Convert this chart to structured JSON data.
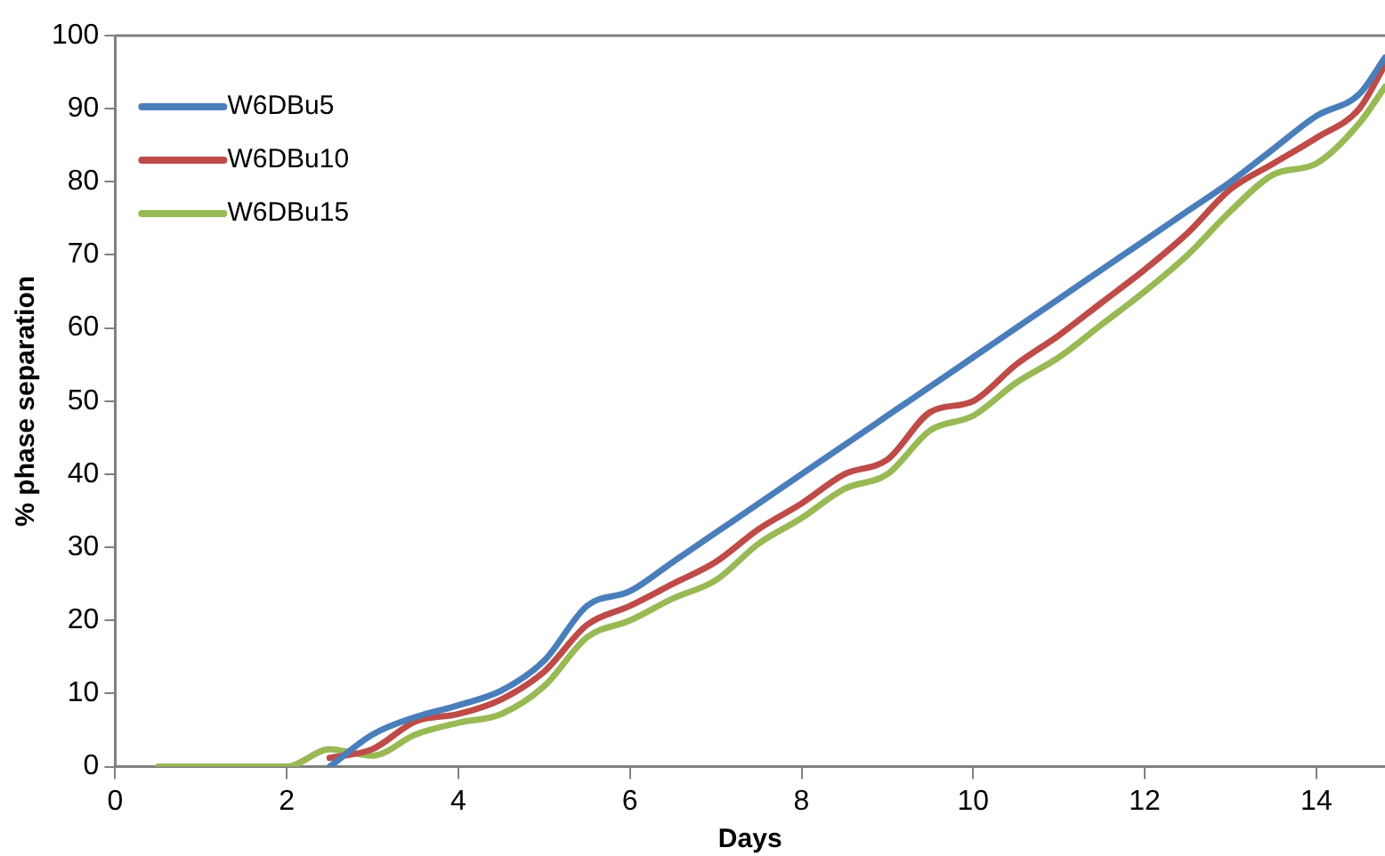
{
  "chart_data": {
    "type": "line",
    "xlabel": "Days",
    "ylabel": "% phase separation",
    "x": [
      0.5,
      1,
      1.5,
      2,
      2.5,
      3,
      3.5,
      4,
      4.5,
      5,
      5.5,
      6,
      6.5,
      7,
      7.5,
      8,
      8.5,
      9,
      9.5,
      10,
      10.5,
      11,
      11.5,
      12,
      12.5,
      13,
      13.5,
      14,
      14.5,
      14.8
    ],
    "series": [
      {
        "name": "W6DBu5",
        "color": "#4a7ebb",
        "values": [
          null,
          null,
          null,
          null,
          0,
          4.4,
          6.8,
          8.4,
          10.4,
          14.5,
          22,
          24,
          28,
          32,
          36,
          40,
          44,
          48,
          52,
          56,
          60,
          64,
          68,
          72,
          76,
          80,
          84.5,
          89,
          92,
          97
        ]
      },
      {
        "name": "W6DBu10",
        "color": "#be4b48",
        "values": [
          null,
          null,
          null,
          null,
          1.2,
          2.4,
          6.2,
          7.2,
          9.2,
          13,
          19.4,
          22,
          25,
          28,
          32.5,
          36,
          40,
          42,
          48.5,
          50,
          55,
          59,
          63.5,
          68,
          73,
          79,
          82.5,
          86,
          90,
          96
        ]
      },
      {
        "name": "W6DBu15",
        "color": "#98b954",
        "values": [
          0,
          0,
          0,
          0,
          2.4,
          1.5,
          4.4,
          6,
          7.2,
          11,
          17.7,
          20,
          23,
          25.5,
          30.5,
          34,
          38,
          40,
          46,
          48,
          52.5,
          56,
          60.5,
          65,
          70,
          76,
          81,
          82.5,
          88,
          93
        ]
      }
    ],
    "xlim": [
      0,
      14.8
    ],
    "ylim": [
      0,
      100
    ],
    "xticks": [
      0,
      2,
      4,
      6,
      8,
      10,
      12,
      14
    ],
    "yticks": [
      0,
      10,
      20,
      30,
      40,
      50,
      60,
      70,
      80,
      90,
      100
    ],
    "grid": false,
    "legend": "top left",
    "marker": "none",
    "line_style": "solid"
  }
}
